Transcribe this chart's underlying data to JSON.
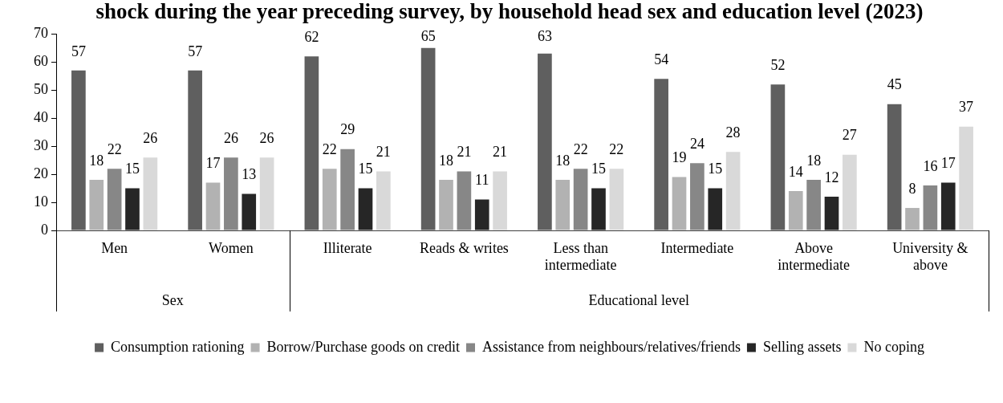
{
  "chart_data": {
    "type": "bar",
    "title": "shock during the year preceding survey, by household head sex and education level (2023)",
    "categories": [
      "Men",
      "Women",
      "Illiterate",
      "Reads & writes",
      "Less than intermediate",
      "Intermediate",
      "Above intermediate",
      "University & above"
    ],
    "series": [
      {
        "name": "Consumption rationing",
        "color": "#5f5f5f",
        "values": [
          57,
          57,
          62,
          65,
          63,
          54,
          52,
          45
        ]
      },
      {
        "name": "Borrow/Purchase goods on credit",
        "color": "#b2b2b2",
        "values": [
          18,
          17,
          22,
          18,
          18,
          19,
          14,
          8
        ]
      },
      {
        "name": "Assistance from neighbours/relatives/friends",
        "color": "#878787",
        "values": [
          22,
          26,
          29,
          21,
          22,
          24,
          18,
          16
        ]
      },
      {
        "name": "Selling assets",
        "color": "#262626",
        "values": [
          15,
          13,
          15,
          11,
          15,
          15,
          12,
          17
        ]
      },
      {
        "name": "No coping",
        "color": "#d9d9d9",
        "values": [
          26,
          26,
          21,
          21,
          22,
          28,
          27,
          37
        ]
      }
    ],
    "ylim": [
      0,
      70
    ],
    "yticks": [
      0,
      10,
      20,
      30,
      40,
      50,
      60,
      70
    ],
    "data_labels": true,
    "legend": "bottom",
    "annotations": [
      "Sex",
      "Educational level"
    ]
  }
}
